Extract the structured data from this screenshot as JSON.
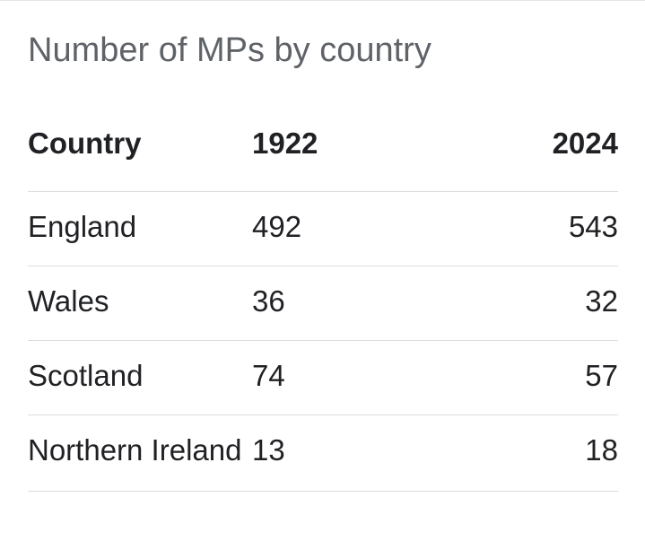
{
  "title": "Number of MPs by country",
  "headers": {
    "country": "Country",
    "y1922": "1922",
    "y2024": "2024"
  },
  "rows": [
    {
      "country": "England",
      "y1922": "492",
      "y2024": "543"
    },
    {
      "country": "Wales",
      "y1922": "36",
      "y2024": "32"
    },
    {
      "country": "Scotland",
      "y1922": "74",
      "y2024": "57"
    },
    {
      "country": "Northern Ireland",
      "y1922": "13",
      "y2024": "18"
    }
  ]
}
